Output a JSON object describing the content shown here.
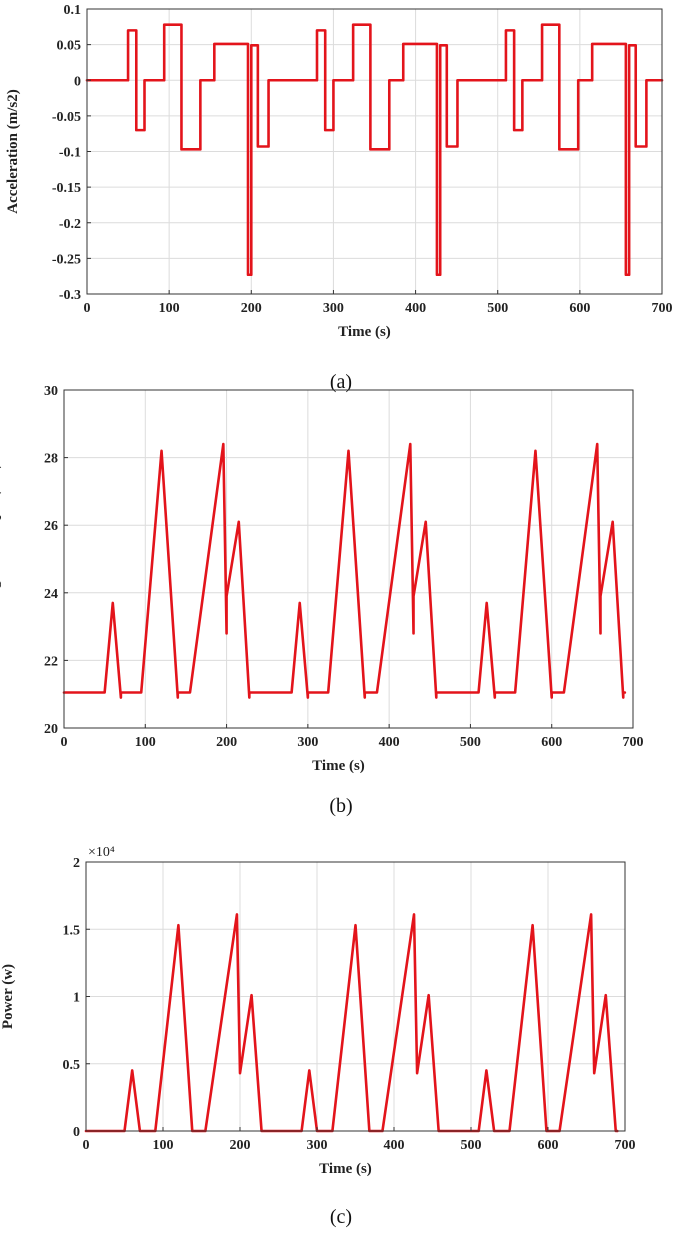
{
  "chart_data": [
    {
      "type": "line",
      "caption": "(a)",
      "xlabel": "Time (s)",
      "ylabel": "Acceleration (m/s2)",
      "xlim": [
        0,
        700
      ],
      "ylim": [
        -0.3,
        0.1
      ],
      "xticks": [
        0,
        100,
        200,
        300,
        400,
        500,
        600,
        700
      ],
      "yticks": [
        -0.3,
        -0.25,
        -0.2,
        -0.15,
        -0.1,
        -0.05,
        0,
        0.05,
        0.1
      ],
      "ytick_labels": [
        "-0.3",
        "-0.25",
        "-0.2",
        "-0.15",
        "-0.1",
        "-0.05",
        "0",
        "0.05",
        "0.1"
      ],
      "scale_label": "",
      "grid": true,
      "color": "#e3141b",
      "period": 230,
      "cycles": 3,
      "x_end": 700,
      "base_cycle": {
        "x": [
          0,
          50,
          50,
          60,
          60,
          70,
          70,
          94,
          94,
          115,
          115,
          138,
          138,
          155,
          155,
          196,
          196,
          200,
          200,
          208,
          208,
          221,
          221,
          230
        ],
        "y": [
          0,
          0,
          0.07,
          0.07,
          -0.07,
          -0.07,
          0,
          0,
          0.078,
          0.078,
          -0.097,
          -0.097,
          0,
          0,
          0.051,
          0.051,
          -0.273,
          -0.273,
          0.049,
          0.049,
          -0.093,
          -0.093,
          0,
          0
        ]
      }
    },
    {
      "type": "line",
      "caption": "(b)",
      "xlabel": "Time (s)",
      "ylabel": "Electromagnetic Torque (Nm)",
      "xlim": [
        0,
        700
      ],
      "ylim": [
        20,
        30
      ],
      "xticks": [
        0,
        100,
        200,
        300,
        400,
        500,
        600,
        700
      ],
      "yticks": [
        20,
        22,
        24,
        26,
        28,
        30
      ],
      "ytick_labels": [
        "20",
        "22",
        "24",
        "26",
        "28",
        "30"
      ],
      "scale_label": "",
      "grid": true,
      "color": "#e3141b",
      "period": 230,
      "cycles": 3,
      "x_end": 690,
      "base_cycle": {
        "x": [
          0,
          50,
          60,
          70,
          70,
          95,
          120,
          140,
          140,
          155,
          196,
          200,
          200,
          215,
          228,
          228
        ],
        "y": [
          21.05,
          21.05,
          23.7,
          20.9,
          21.05,
          21.05,
          28.2,
          20.9,
          21.05,
          21.05,
          28.4,
          22.8,
          23.9,
          26.1,
          20.9,
          21.05
        ]
      }
    },
    {
      "type": "line",
      "caption": "(c)",
      "xlabel": "Time (s)",
      "ylabel": "Power (w)",
      "xlim": [
        0,
        700
      ],
      "ylim": [
        0,
        20000
      ],
      "xticks": [
        0,
        100,
        200,
        300,
        400,
        500,
        600,
        700
      ],
      "yticks": [
        0,
        5000,
        10000,
        15000,
        20000
      ],
      "ytick_labels": [
        "0",
        "0.5",
        "1",
        "1.5",
        "2"
      ],
      "scale_label": "×10⁴",
      "grid": true,
      "color": "#e3141b",
      "period": 230,
      "cycles": 3,
      "x_end": 690,
      "base_cycle": {
        "x": [
          0,
          50,
          60,
          70,
          90,
          120,
          138,
          155,
          196,
          200,
          200,
          215,
          228,
          230
        ],
        "y": [
          0,
          0,
          4500,
          0,
          0,
          15300,
          0,
          0,
          16100,
          4300,
          4300,
          10100,
          0,
          0
        ]
      }
    }
  ]
}
